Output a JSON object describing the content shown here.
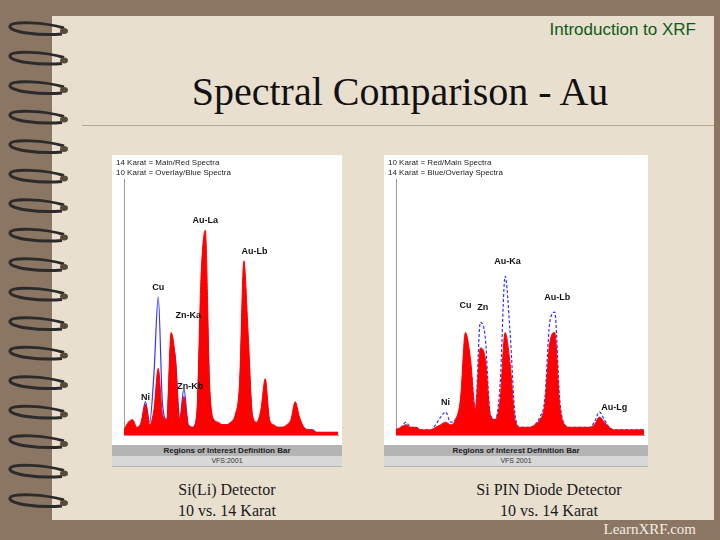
{
  "header": "Introduction to XRF",
  "title": "Spectral Comparison - Au",
  "footer": "LearnXRF.com",
  "chart_data": [
    {
      "type": "line",
      "caption": [
        "Si(Li) Detector",
        "10 vs. 14 Karat"
      ],
      "xlabel": "Regions of Interest Definition Bar",
      "subtitle": "VFS:2001",
      "x": [
        0,
        2,
        4,
        6,
        8,
        10,
        12,
        14,
        16,
        18,
        20,
        22,
        24,
        26,
        28,
        30,
        32,
        34,
        36,
        38,
        40,
        42,
        44,
        46,
        48,
        50,
        52,
        54,
        56,
        58,
        60,
        62,
        64,
        66,
        68,
        70,
        72,
        74,
        76,
        78,
        80,
        82,
        84,
        86,
        88,
        90,
        92,
        94,
        96,
        98,
        100
      ],
      "xlim": [
        0,
        100
      ],
      "ylim": [
        0,
        100
      ],
      "tick_labels": false,
      "grid": false,
      "legend": "upper left",
      "series": [
        {
          "name": "14 Karat = Main/Red Spectra",
          "color": "#ff0000",
          "type": "area",
          "line_style": "solid",
          "values": [
            2,
            5,
            6,
            3,
            5,
            12,
            4,
            10,
            26,
            8,
            6,
            40,
            30,
            6,
            15,
            4,
            3,
            8,
            62,
            80,
            20,
            6,
            5,
            4,
            4,
            5,
            8,
            20,
            68,
            40,
            8,
            5,
            10,
            22,
            6,
            4,
            3,
            3,
            4,
            6,
            13,
            7,
            3,
            2,
            2,
            1,
            1,
            1,
            1,
            1,
            1
          ]
        },
        {
          "name": "10 Karat = Overlay/Blue Spectra",
          "color": "#3333ff",
          "type": "line",
          "line_style": "solid",
          "values": [
            1,
            3,
            4,
            2,
            4,
            13,
            5,
            24,
            54,
            12,
            6,
            36,
            30,
            6,
            18,
            4,
            3,
            7,
            52,
            66,
            16,
            5,
            4,
            4,
            4,
            5,
            7,
            17,
            57,
            33,
            7,
            4,
            8,
            18,
            5,
            3,
            3,
            3,
            3,
            5,
            10,
            6,
            3,
            2,
            2,
            1,
            1,
            1,
            1,
            1,
            1
          ]
        }
      ],
      "annotations": [
        {
          "text": "Au-La",
          "x": 38,
          "y": 82
        },
        {
          "text": "Au-Lb",
          "x": 61,
          "y": 70
        },
        {
          "text": "Cu",
          "x": 16,
          "y": 56
        },
        {
          "text": "Zn-Ka",
          "x": 30,
          "y": 45
        },
        {
          "text": "Zn-Kb",
          "x": 31,
          "y": 17
        },
        {
          "text": "Ni",
          "x": 10,
          "y": 13
        }
      ]
    },
    {
      "type": "line",
      "caption": [
        "Si PIN Diode Detector",
        "10 vs. 14 Karat"
      ],
      "xlabel": "Regions of Interest Definition Bar",
      "subtitle": "VFS 2001",
      "x": [
        0,
        2,
        4,
        6,
        8,
        10,
        12,
        14,
        16,
        18,
        20,
        22,
        24,
        26,
        28,
        30,
        32,
        34,
        36,
        38,
        40,
        42,
        44,
        46,
        48,
        50,
        52,
        54,
        56,
        58,
        60,
        62,
        64,
        66,
        68,
        70,
        72,
        74,
        76,
        78,
        80,
        82,
        84,
        86,
        88,
        90,
        92,
        94,
        96,
        98,
        100
      ],
      "xlim": [
        0,
        100
      ],
      "ylim": [
        0,
        100
      ],
      "tick_labels": false,
      "grid": false,
      "legend": "upper left",
      "series": [
        {
          "name": "10 Karat = Red/Main Spectra",
          "color": "#ff0000",
          "type": "area",
          "line_style": "solid",
          "values": [
            2,
            3,
            4,
            3,
            3,
            2,
            2,
            2,
            3,
            4,
            5,
            4,
            6,
            14,
            40,
            30,
            10,
            34,
            30,
            8,
            6,
            14,
            40,
            28,
            6,
            3,
            3,
            3,
            4,
            6,
            12,
            36,
            40,
            12,
            4,
            3,
            3,
            3,
            3,
            3,
            4,
            7,
            5,
            3,
            2,
            2,
            2,
            2,
            2,
            2,
            2
          ]
        },
        {
          "name": "14 Karat = Blue/Overlay Spectra",
          "color": "#3333ff",
          "type": "line",
          "line_style": "dashed",
          "values": [
            2,
            3,
            5,
            3,
            3,
            2,
            2,
            2,
            4,
            7,
            9,
            5,
            6,
            12,
            36,
            28,
            10,
            44,
            38,
            8,
            6,
            20,
            62,
            40,
            8,
            3,
            3,
            3,
            4,
            7,
            14,
            44,
            48,
            14,
            4,
            3,
            3,
            3,
            3,
            3,
            5,
            9,
            6,
            3,
            2,
            2,
            2,
            2,
            2,
            2,
            2
          ]
        }
      ],
      "annotations": [
        {
          "text": "Au-Ka",
          "x": 45,
          "y": 66
        },
        {
          "text": "Cu",
          "x": 28,
          "y": 49
        },
        {
          "text": "Zn",
          "x": 35,
          "y": 48
        },
        {
          "text": "Au-Lb",
          "x": 65,
          "y": 52
        },
        {
          "text": "Ni",
          "x": 20,
          "y": 11
        },
        {
          "text": "Au-Lg",
          "x": 88,
          "y": 9
        }
      ]
    }
  ]
}
